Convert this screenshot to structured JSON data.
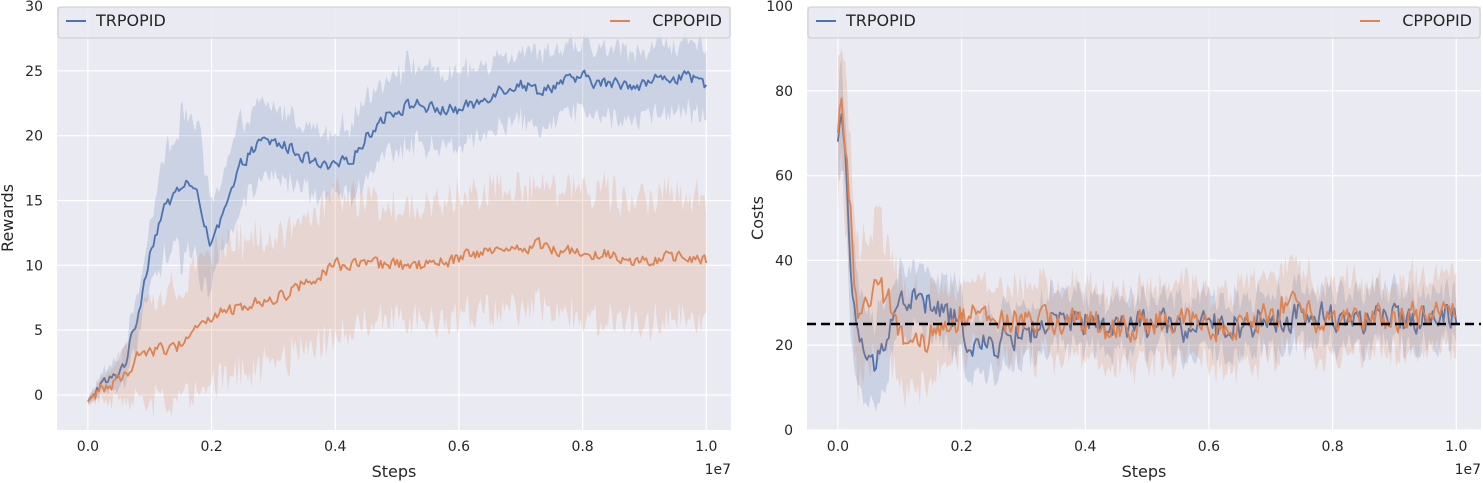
{
  "chart_data": [
    {
      "type": "line",
      "xlabel": "Steps",
      "ylabel": "Rewards",
      "x_offset_label": "1e7",
      "xlim": [
        -0.05,
        1.04
      ],
      "ylim": [
        -2.7,
        30
      ],
      "x_ticks": [
        0.0,
        0.2,
        0.4,
        0.6,
        0.8,
        1.0
      ],
      "x_tick_labels": [
        "0.0",
        "0.2",
        "0.4",
        "0.6",
        "0.8",
        "1.0"
      ],
      "y_ticks": [
        0,
        5,
        10,
        15,
        20,
        25,
        30
      ],
      "y_tick_labels": [
        "0",
        "5",
        "10",
        "15",
        "20",
        "25",
        "30"
      ],
      "grid": true,
      "background": "#eaeaf2",
      "legend": {
        "position": "top",
        "entries": [
          "TRPOPID",
          "CPPOPID"
        ]
      },
      "series": [
        {
          "name": "TRPOPID",
          "color": "#4c72b0",
          "points": [
            [
              0.0,
              -0.5
            ],
            [
              0.02,
              0.8
            ],
            [
              0.04,
              1.2
            ],
            [
              0.06,
              2.5
            ],
            [
              0.08,
              6
            ],
            [
              0.1,
              11
            ],
            [
              0.12,
              14
            ],
            [
              0.14,
              15.5
            ],
            [
              0.16,
              16.5
            ],
            [
              0.18,
              15
            ],
            [
              0.2,
              11.5
            ],
            [
              0.22,
              14
            ],
            [
              0.25,
              18
            ],
            [
              0.28,
              19.5
            ],
            [
              0.3,
              19.5
            ],
            [
              0.33,
              19
            ],
            [
              0.36,
              18
            ],
            [
              0.38,
              17.5
            ],
            [
              0.4,
              17.5
            ],
            [
              0.43,
              18.5
            ],
            [
              0.46,
              20.5
            ],
            [
              0.48,
              21.5
            ],
            [
              0.5,
              22
            ],
            [
              0.53,
              22.5
            ],
            [
              0.56,
              22
            ],
            [
              0.6,
              22
            ],
            [
              0.63,
              22.5
            ],
            [
              0.66,
              23.5
            ],
            [
              0.7,
              24
            ],
            [
              0.73,
              23.5
            ],
            [
              0.76,
              24
            ],
            [
              0.8,
              24.5
            ],
            [
              0.83,
              24
            ],
            [
              0.86,
              24
            ],
            [
              0.9,
              24
            ],
            [
              0.93,
              24.5
            ],
            [
              0.96,
              24.5
            ],
            [
              1.0,
              24
            ]
          ],
          "band_halfwidth": [
            [
              0.0,
              0.3
            ],
            [
              0.1,
              2
            ],
            [
              0.14,
              5
            ],
            [
              0.18,
              5
            ],
            [
              0.2,
              3
            ],
            [
              0.25,
              3
            ],
            [
              0.3,
              2.5
            ],
            [
              0.4,
              2.5
            ],
            [
              0.5,
              3
            ],
            [
              0.6,
              2.5
            ],
            [
              0.7,
              2.5
            ],
            [
              0.8,
              2.5
            ],
            [
              0.9,
              2.5
            ],
            [
              1.0,
              2.5
            ]
          ]
        },
        {
          "name": "CPPOPID",
          "color": "#dd8452",
          "points": [
            [
              0.0,
              -0.5
            ],
            [
              0.02,
              0.5
            ],
            [
              0.04,
              0.8
            ],
            [
              0.06,
              1.5
            ],
            [
              0.08,
              3
            ],
            [
              0.1,
              3.5
            ],
            [
              0.12,
              3.5
            ],
            [
              0.14,
              3.5
            ],
            [
              0.16,
              4.5
            ],
            [
              0.18,
              5.5
            ],
            [
              0.2,
              6
            ],
            [
              0.23,
              6.5
            ],
            [
              0.26,
              7
            ],
            [
              0.3,
              7.5
            ],
            [
              0.33,
              8
            ],
            [
              0.36,
              9
            ],
            [
              0.38,
              9.5
            ],
            [
              0.4,
              10
            ],
            [
              0.44,
              10
            ],
            [
              0.48,
              10
            ],
            [
              0.52,
              10
            ],
            [
              0.56,
              10
            ],
            [
              0.6,
              10.5
            ],
            [
              0.64,
              11
            ],
            [
              0.68,
              11
            ],
            [
              0.7,
              11.5
            ],
            [
              0.74,
              11.5
            ],
            [
              0.78,
              11
            ],
            [
              0.8,
              11
            ],
            [
              0.84,
              11
            ],
            [
              0.88,
              10.5
            ],
            [
              0.92,
              10.5
            ],
            [
              0.96,
              10.5
            ],
            [
              1.0,
              10.5
            ]
          ],
          "band_halfwidth": [
            [
              0.0,
              0.3
            ],
            [
              0.05,
              1.5
            ],
            [
              0.1,
              3.5
            ],
            [
              0.14,
              4.5
            ],
            [
              0.2,
              5
            ],
            [
              0.3,
              4.5
            ],
            [
              0.4,
              5
            ],
            [
              0.5,
              4
            ],
            [
              0.6,
              4.5
            ],
            [
              0.7,
              4.5
            ],
            [
              0.8,
              4.5
            ],
            [
              0.9,
              4.5
            ],
            [
              1.0,
              4.5
            ]
          ]
        }
      ]
    },
    {
      "type": "line",
      "xlabel": "Steps",
      "ylabel": "Costs",
      "x_offset_label": "1e7",
      "xlim": [
        -0.05,
        1.04
      ],
      "ylim": [
        0,
        100
      ],
      "x_ticks": [
        0.0,
        0.2,
        0.4,
        0.6,
        0.8,
        1.0
      ],
      "x_tick_labels": [
        "0.0",
        "0.2",
        "0.4",
        "0.6",
        "0.8",
        "1.0"
      ],
      "y_ticks": [
        0,
        20,
        40,
        60,
        80,
        100
      ],
      "y_tick_labels": [
        "0",
        "20",
        "40",
        "60",
        "80",
        "100"
      ],
      "grid": true,
      "background": "#eaeaf2",
      "threshold": {
        "value": 25,
        "color": "#000000",
        "style": "dashed"
      },
      "legend": {
        "position": "top",
        "entries": [
          "TRPOPID",
          "CPPOPID"
        ]
      },
      "series": [
        {
          "name": "TRPOPID",
          "color": "#4c72b0",
          "points": [
            [
              0.0,
              68
            ],
            [
              0.005,
              75
            ],
            [
              0.01,
              72
            ],
            [
              0.015,
              55
            ],
            [
              0.02,
              35
            ],
            [
              0.025,
              28
            ],
            [
              0.03,
              25
            ],
            [
              0.04,
              20
            ],
            [
              0.05,
              15
            ],
            [
              0.06,
              15
            ],
            [
              0.07,
              18
            ],
            [
              0.08,
              25
            ],
            [
              0.1,
              30
            ],
            [
              0.12,
              31
            ],
            [
              0.14,
              30
            ],
            [
              0.16,
              28
            ],
            [
              0.18,
              27
            ],
            [
              0.2,
              24
            ],
            [
              0.22,
              20
            ],
            [
              0.24,
              19
            ],
            [
              0.26,
              21
            ],
            [
              0.3,
              23
            ],
            [
              0.35,
              25
            ],
            [
              0.4,
              25
            ],
            [
              0.45,
              24
            ],
            [
              0.5,
              25
            ],
            [
              0.55,
              24
            ],
            [
              0.6,
              24
            ],
            [
              0.65,
              25
            ],
            [
              0.7,
              26
            ],
            [
              0.75,
              27
            ],
            [
              0.8,
              27
            ],
            [
              0.85,
              26
            ],
            [
              0.9,
              26
            ],
            [
              0.95,
              27
            ],
            [
              1.0,
              28
            ]
          ],
          "band_halfwidth": [
            [
              0.0,
              10
            ],
            [
              0.02,
              12
            ],
            [
              0.05,
              10
            ],
            [
              0.1,
              7
            ],
            [
              0.2,
              7
            ],
            [
              0.3,
              6
            ],
            [
              0.5,
              6
            ],
            [
              0.7,
              6
            ],
            [
              0.9,
              6
            ],
            [
              1.0,
              6
            ]
          ]
        },
        {
          "name": "CPPOPID",
          "color": "#dd8452",
          "points": [
            [
              0.0,
              70
            ],
            [
              0.005,
              80
            ],
            [
              0.01,
              70
            ],
            [
              0.015,
              62
            ],
            [
              0.02,
              52
            ],
            [
              0.025,
              40
            ],
            [
              0.03,
              30
            ],
            [
              0.035,
              25
            ],
            [
              0.04,
              30
            ],
            [
              0.05,
              31
            ],
            [
              0.06,
              33
            ],
            [
              0.07,
              32
            ],
            [
              0.08,
              30
            ],
            [
              0.09,
              28
            ],
            [
              0.1,
              24
            ],
            [
              0.11,
              20
            ],
            [
              0.12,
              18
            ],
            [
              0.14,
              20
            ],
            [
              0.16,
              24
            ],
            [
              0.18,
              26
            ],
            [
              0.2,
              27
            ],
            [
              0.25,
              26
            ],
            [
              0.3,
              25
            ],
            [
              0.35,
              26
            ],
            [
              0.4,
              25
            ],
            [
              0.45,
              24
            ],
            [
              0.5,
              25
            ],
            [
              0.55,
              25
            ],
            [
              0.6,
              25
            ],
            [
              0.65,
              25
            ],
            [
              0.7,
              26
            ],
            [
              0.72,
              30
            ],
            [
              0.75,
              27
            ],
            [
              0.8,
              27
            ],
            [
              0.85,
              27
            ],
            [
              0.9,
              26
            ],
            [
              0.95,
              27
            ],
            [
              1.0,
              27
            ]
          ],
          "band_halfwidth": [
            [
              0.0,
              15
            ],
            [
              0.02,
              18
            ],
            [
              0.04,
              15
            ],
            [
              0.1,
              12
            ],
            [
              0.15,
              10
            ],
            [
              0.2,
              8
            ],
            [
              0.3,
              8
            ],
            [
              0.5,
              8
            ],
            [
              0.7,
              9
            ],
            [
              0.9,
              8
            ],
            [
              1.0,
              9
            ]
          ]
        }
      ]
    }
  ]
}
